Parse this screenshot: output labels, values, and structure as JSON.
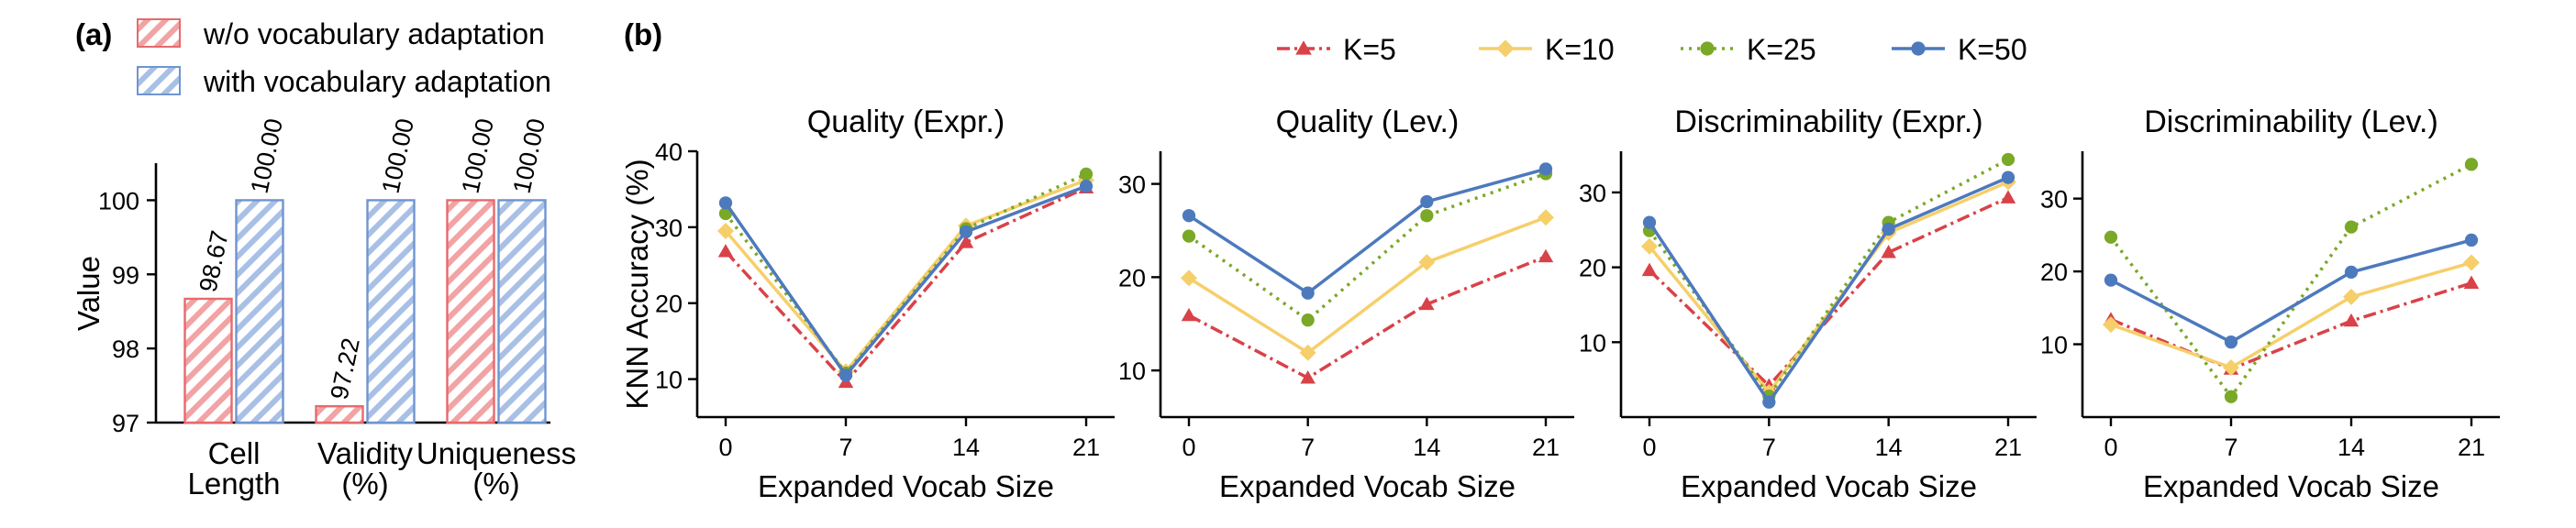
{
  "figure": {
    "panel_a_tag": "(a)",
    "panel_b_tag": "(b)"
  },
  "colors": {
    "red": "#d94248",
    "yellow": "#f6cf6a",
    "green": "#7aa827",
    "blue": "#4d79bd",
    "bar_red": "#e66a6d",
    "bar_red_fill": "#f2a3a4",
    "bar_blue": "#6f95cf",
    "bar_blue_fill": "#a9c0e6"
  },
  "chart_data": [
    {
      "type": "bar",
      "panel": "(a)",
      "ylabel": "Value",
      "xlabel": "",
      "ylim": [
        97,
        100.5
      ],
      "yticks": [
        97,
        98,
        99,
        100
      ],
      "categories": [
        "Cell\nLength",
        "Validity\n(%)",
        "Uniqueness\n(%)"
      ],
      "legend_placement": "top-left",
      "series": [
        {
          "name": "w/o vocabulary adaptation",
          "values": [
            98.67,
            97.22,
            100.0
          ],
          "labels": [
            "98.67",
            "97.22",
            "100.00"
          ]
        },
        {
          "name": "with vocabulary adaptation",
          "values": [
            100.0,
            100.0,
            100.0
          ],
          "labels": [
            "100.00",
            "100.00",
            "100.00"
          ]
        }
      ]
    },
    {
      "type": "line",
      "panel": "(b)",
      "title": "Quality (Expr.)",
      "xlabel": "Expanded Vocab Size",
      "ylabel": "KNN Accuracy (%)",
      "x": [
        0,
        7,
        14,
        21
      ],
      "ylim": [
        5,
        40
      ],
      "yticks": [
        10,
        20,
        30,
        40
      ],
      "series": [
        {
          "name": "K=5",
          "values": [
            26.8,
            9.6,
            28.0,
            35.2
          ]
        },
        {
          "name": "K=10",
          "values": [
            29.5,
            11.0,
            30.2,
            36.2
          ]
        },
        {
          "name": "K=25",
          "values": [
            31.8,
            10.8,
            29.8,
            37.0
          ]
        },
        {
          "name": "K=50",
          "values": [
            33.2,
            10.5,
            29.4,
            35.4
          ]
        }
      ]
    },
    {
      "type": "line",
      "panel": "(b)",
      "title": "Quality (Lev.)",
      "xlabel": "Expanded Vocab Size",
      "ylabel": "",
      "x": [
        0,
        7,
        14,
        21
      ],
      "ylim": [
        5,
        33.5
      ],
      "yticks": [
        10,
        20,
        30
      ],
      "series": [
        {
          "name": "K=5",
          "values": [
            15.9,
            9.2,
            17.1,
            22.2
          ]
        },
        {
          "name": "K=10",
          "values": [
            19.9,
            11.9,
            21.6,
            26.4
          ]
        },
        {
          "name": "K=25",
          "values": [
            24.4,
            15.4,
            26.6,
            31.1
          ]
        },
        {
          "name": "K=50",
          "values": [
            26.6,
            18.3,
            28.1,
            31.6
          ]
        }
      ]
    },
    {
      "type": "line",
      "panel": "(b)",
      "title": "Discriminability (Expr.)",
      "xlabel": "Expanded Vocab Size",
      "ylabel": "",
      "x": [
        0,
        7,
        14,
        21
      ],
      "ylim": [
        0,
        35.5
      ],
      "yticks": [
        10,
        20,
        30
      ],
      "series": [
        {
          "name": "K=5",
          "values": [
            19.6,
            4.2,
            22.0,
            29.3
          ]
        },
        {
          "name": "K=10",
          "values": [
            22.8,
            3.3,
            24.6,
            31.4
          ]
        },
        {
          "name": "K=25",
          "values": [
            24.9,
            2.8,
            26.0,
            34.4
          ]
        },
        {
          "name": "K=50",
          "values": [
            26.0,
            2.0,
            25.1,
            32.0
          ]
        }
      ]
    },
    {
      "type": "line",
      "panel": "(b)",
      "title": "Discriminability (Lev.)",
      "xlabel": "Expanded Vocab Size",
      "ylabel": "",
      "x": [
        0,
        7,
        14,
        21
      ],
      "ylim": [
        0,
        36.5
      ],
      "yticks": [
        10,
        20,
        30
      ],
      "series": [
        {
          "name": "K=5",
          "values": [
            13.4,
            6.6,
            13.2,
            18.4
          ]
        },
        {
          "name": "K=10",
          "values": [
            12.7,
            6.8,
            16.5,
            21.2
          ]
        },
        {
          "name": "K=25",
          "values": [
            24.7,
            2.8,
            26.1,
            34.7
          ]
        },
        {
          "name": "K=50",
          "values": [
            18.8,
            10.3,
            19.9,
            24.3
          ]
        }
      ]
    }
  ]
}
